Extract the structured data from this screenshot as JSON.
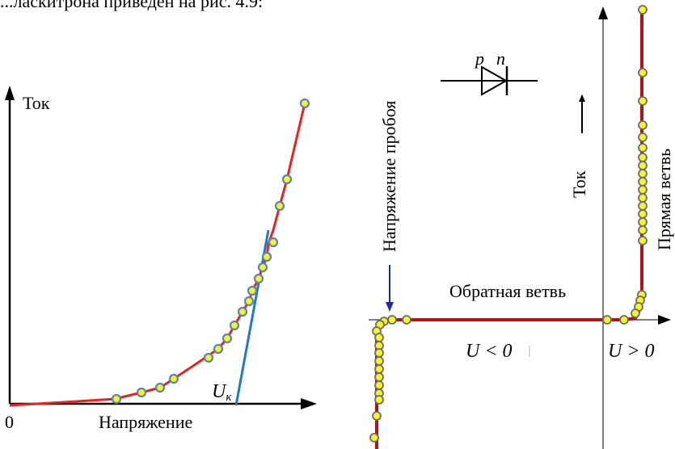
{
  "header_text": "...ласкитрона приведен на рис. 4.9:",
  "left_diagram": {
    "y_axis_label": "Ток",
    "x_axis_label": "Напряжение",
    "origin_label": "0",
    "threshold_label": "U",
    "threshold_subscript": "к",
    "curve_color": "#e8231e",
    "tangent_color": "#1e7ac2",
    "marker_fill": "#f5f230",
    "marker_stroke": "#5b84b1"
  },
  "right_diagram": {
    "diode_p_label": "p",
    "diode_n_label": "n",
    "current_label": "Ток",
    "breakdown_label": "Напряжение пробоя",
    "forward_branch_label": "Прямая ветвь",
    "reverse_branch_label": "Обратная ветвь",
    "negative_label": "U < 0",
    "positive_label": "U > 0",
    "curve_color": "#b01414",
    "arrow_color": "#1f2aa3",
    "marker_fill": "#f5f230",
    "marker_stroke": "#6b6b6b"
  }
}
